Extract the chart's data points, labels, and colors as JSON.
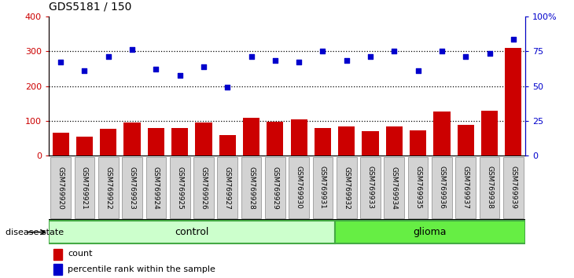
{
  "title": "GDS5181 / 150",
  "samples": [
    "GSM769920",
    "GSM769921",
    "GSM769922",
    "GSM769923",
    "GSM769924",
    "GSM769925",
    "GSM769926",
    "GSM769927",
    "GSM769928",
    "GSM769929",
    "GSM769930",
    "GSM769931",
    "GSM769932",
    "GSM769933",
    "GSM769934",
    "GSM769935",
    "GSM769936",
    "GSM769937",
    "GSM769938",
    "GSM769939"
  ],
  "counts": [
    65,
    55,
    78,
    95,
    80,
    80,
    95,
    60,
    110,
    97,
    105,
    80,
    85,
    70,
    85,
    72,
    128,
    88,
    130,
    310
  ],
  "percentiles": [
    270,
    245,
    285,
    305,
    250,
    230,
    255,
    198,
    285,
    275,
    270,
    300,
    275,
    285,
    300,
    245,
    300,
    285,
    295,
    335
  ],
  "control_count": 12,
  "glioma_count": 8,
  "ylim_left": [
    0,
    400
  ],
  "ylim_right": [
    0,
    100
  ],
  "yticks_left": [
    0,
    100,
    200,
    300,
    400
  ],
  "yticks_right": [
    0,
    25,
    50,
    75,
    100
  ],
  "ytick_labels_right": [
    "0",
    "25",
    "50",
    "75",
    "100%"
  ],
  "bar_color": "#cc0000",
  "dot_color": "#0000cc",
  "bg_color": "#ffffff",
  "tick_label_color_left": "#cc0000",
  "tick_label_color_right": "#0000cc",
  "control_bg": "#ccffcc",
  "glioma_bg": "#66ee44",
  "control_border": "#44aa44",
  "glioma_border": "#44aa44",
  "label_count": "count",
  "label_percentile": "percentile rank within the sample",
  "disease_state_label": "disease state",
  "control_label": "control",
  "glioma_label": "glioma",
  "tick_bg": "#d3d3d3",
  "tick_border": "#888888"
}
